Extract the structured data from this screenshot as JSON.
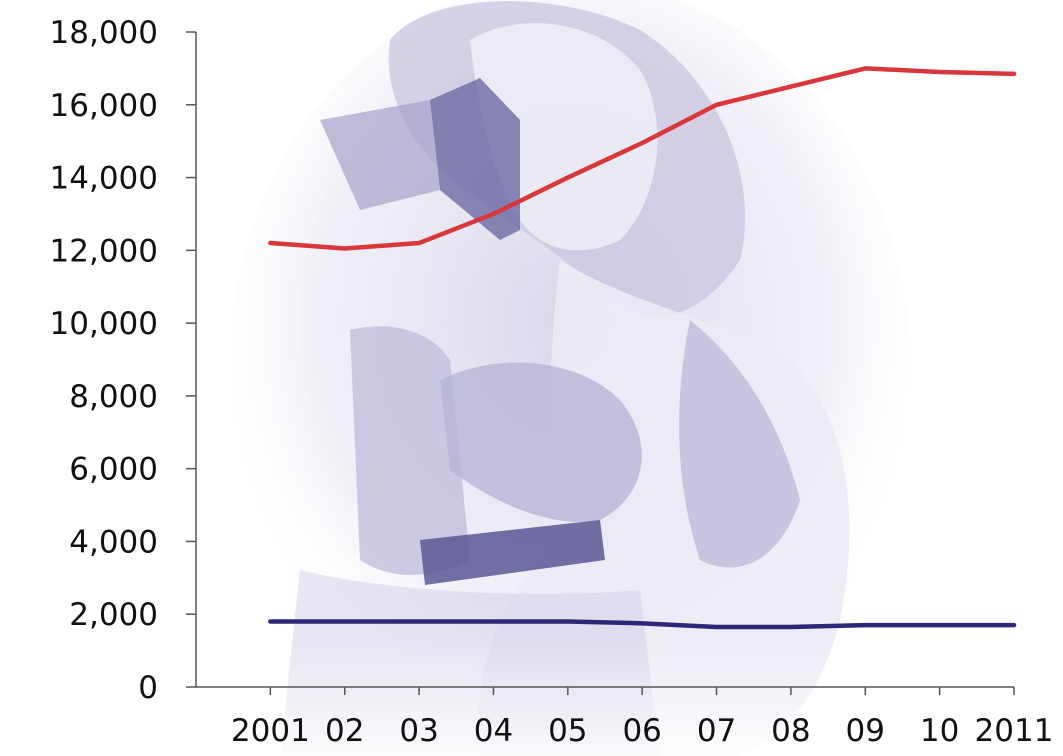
{
  "chart_data": {
    "type": "line",
    "title": "",
    "xlabel": "",
    "ylabel": "",
    "categories": [
      "2001",
      "02",
      "03",
      "04",
      "05",
      "06",
      "07",
      "08",
      "09",
      "10",
      "2011"
    ],
    "y_ticks": [
      "18,000",
      "16,000",
      "14,000",
      "12,000",
      "10,000",
      "8,000",
      "6,000",
      "4,000",
      "2,000",
      "0"
    ],
    "ylim": [
      0,
      18000
    ],
    "grid": false,
    "legend": "none",
    "series": [
      {
        "color": "#d8373c",
        "values": [
          12200,
          12050,
          12200,
          13000,
          14000,
          14950,
          16000,
          16500,
          17000,
          16900,
          16850
        ]
      },
      {
        "color": "#2e2677",
        "values": [
          1800,
          1800,
          1800,
          1800,
          1800,
          1750,
          1650,
          1650,
          1700,
          1700,
          1700
        ]
      }
    ],
    "axis_color": "#555555",
    "background_image": "woman-scientist-microscope-photo"
  }
}
